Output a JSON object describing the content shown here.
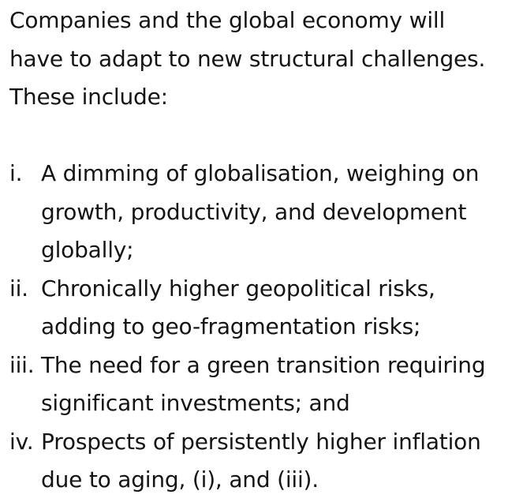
{
  "document": {
    "intro": "Companies and the global economy will have to adapt to new structural challenges. These include:",
    "items": [
      {
        "marker": "i.",
        "text": "A dimming of globalisation, weighing on growth, productivity, and development globally;"
      },
      {
        "marker": "ii.",
        "text": "Chronically higher geopolitical risks, adding to geo-fragmentation risks;"
      },
      {
        "marker": "iii.",
        "text": "The need for a green transition requiring significant investments; and"
      },
      {
        "marker": "iv.",
        "text": "Prospects of persistently higher inflation due to aging, (i), and (iii)."
      }
    ]
  }
}
